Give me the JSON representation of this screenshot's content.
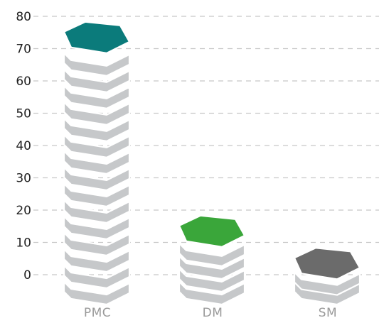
{
  "chart_data": {
    "type": "bar",
    "categories": [
      "PMC",
      "DM",
      "SM"
    ],
    "values": [
      75,
      15,
      5
    ],
    "ylim": [
      0,
      80
    ],
    "yticks": [
      "0",
      "10",
      "20",
      "30",
      "40",
      "50",
      "60",
      "70",
      "80"
    ],
    "grid": true,
    "title": "",
    "xlabel": "",
    "ylabel": "",
    "colors": {
      "top_faces": [
        "#0b7b7b",
        "#3aa63a",
        "#6b6b6b"
      ],
      "stack_layer": "#c6c8ca",
      "stack_edge": "#ffffff",
      "top_edge": "#ffffff"
    }
  }
}
